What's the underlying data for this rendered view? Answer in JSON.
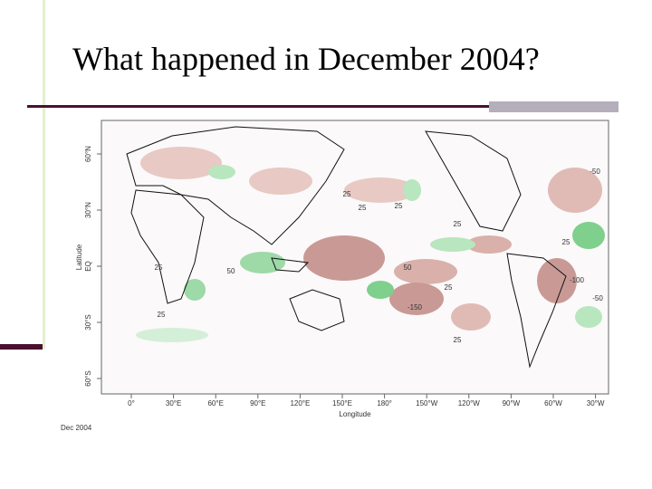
{
  "header": {
    "title": "What happened in December 2004?"
  },
  "map": {
    "x_label": "Longitude",
    "y_label": "Latitude",
    "lon_ticks": [
      "0°",
      "30°E",
      "60°E",
      "90°E",
      "120°E",
      "150°E",
      "180°",
      "150°W",
      "120°W",
      "90°W",
      "60°W",
      "30°W"
    ],
    "lat_ticks": [
      "60°N",
      "30°N",
      "EQ",
      "30°S",
      "60°S"
    ],
    "contour_labels": [
      "25",
      "25",
      "50",
      "25",
      "25",
      "-50",
      "50",
      "25",
      "25",
      "-100",
      "-150",
      "25",
      "25",
      "25",
      "-50"
    ],
    "caption": "Dec 2004"
  }
}
